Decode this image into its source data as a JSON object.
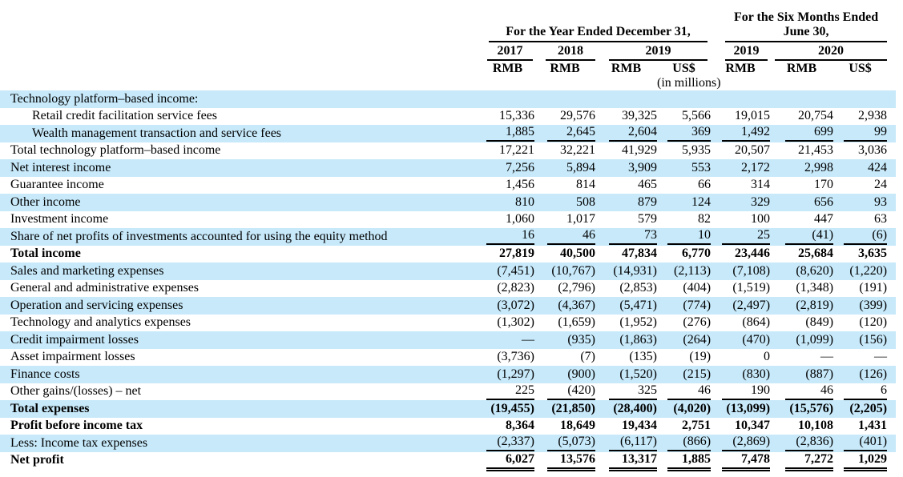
{
  "style": {
    "highlight_color": "#c7e9fa",
    "rule_color": "#000000"
  },
  "header": {
    "year_group": "For the Year Ended December 31,",
    "six_month_line1": "For the Six Months Ended",
    "six_month_line2": "June 30,",
    "years": [
      "2017",
      "2018",
      "2019",
      "2019",
      "2020"
    ],
    "units": [
      "RMB",
      "RMB",
      "RMB",
      "US$",
      "RMB",
      "RMB",
      "US$"
    ],
    "note": "(in millions)"
  },
  "table": {
    "rows": [
      {
        "label": "Technology platform–based income:",
        "indent": 0,
        "bold": false,
        "hl": true,
        "ul": "none",
        "values": [
          "",
          "",
          "",
          "",
          "",
          "",
          ""
        ]
      },
      {
        "label": "Retail credit facilitation service fees",
        "indent": 1,
        "bold": false,
        "hl": false,
        "ul": "none",
        "values": [
          "15,336",
          "29,576",
          "39,325",
          "5,566",
          "19,015",
          "20,754",
          "2,938"
        ]
      },
      {
        "label": "Wealth management transaction and service fees",
        "indent": 1,
        "bold": false,
        "hl": true,
        "ul": "single",
        "values": [
          "1,885",
          "2,645",
          "2,604",
          "369",
          "1,492",
          "699",
          "99"
        ]
      },
      {
        "label": "Total technology platform–based income",
        "indent": 0,
        "bold": false,
        "hl": false,
        "ul": "none",
        "values": [
          "17,221",
          "32,221",
          "41,929",
          "5,935",
          "20,507",
          "21,453",
          "3,036"
        ]
      },
      {
        "label": "Net interest income",
        "indent": 0,
        "bold": false,
        "hl": true,
        "ul": "none",
        "values": [
          "7,256",
          "5,894",
          "3,909",
          "553",
          "2,172",
          "2,998",
          "424"
        ]
      },
      {
        "label": "Guarantee income",
        "indent": 0,
        "bold": false,
        "hl": false,
        "ul": "none",
        "values": [
          "1,456",
          "814",
          "465",
          "66",
          "314",
          "170",
          "24"
        ]
      },
      {
        "label": "Other income",
        "indent": 0,
        "bold": false,
        "hl": true,
        "ul": "none",
        "values": [
          "810",
          "508",
          "879",
          "124",
          "329",
          "656",
          "93"
        ]
      },
      {
        "label": "Investment income",
        "indent": 0,
        "bold": false,
        "hl": false,
        "ul": "none",
        "values": [
          "1,060",
          "1,017",
          "579",
          "82",
          "100",
          "447",
          "63"
        ]
      },
      {
        "label": "Share of net profits of investments accounted for using the equity method",
        "indent": 0,
        "bold": false,
        "hl": true,
        "ul": "single",
        "values": [
          "16",
          "46",
          "73",
          "10",
          "25",
          "(41)",
          "(6)"
        ]
      },
      {
        "label": "Total income",
        "indent": 0,
        "bold": true,
        "hl": false,
        "ul": "none",
        "values": [
          "27,819",
          "40,500",
          "47,834",
          "6,770",
          "23,446",
          "25,684",
          "3,635"
        ]
      },
      {
        "label": "Sales and marketing expenses",
        "indent": 0,
        "bold": false,
        "hl": true,
        "ul": "none",
        "values": [
          "(7,451)",
          "(10,767)",
          "(14,931)",
          "(2,113)",
          "(7,108)",
          "(8,620)",
          "(1,220)"
        ]
      },
      {
        "label": "General and administrative expenses",
        "indent": 0,
        "bold": false,
        "hl": false,
        "ul": "none",
        "values": [
          "(2,823)",
          "(2,796)",
          "(2,853)",
          "(404)",
          "(1,519)",
          "(1,348)",
          "(191)"
        ]
      },
      {
        "label": "Operation and servicing expenses",
        "indent": 0,
        "bold": false,
        "hl": true,
        "ul": "none",
        "values": [
          "(3,072)",
          "(4,367)",
          "(5,471)",
          "(774)",
          "(2,497)",
          "(2,819)",
          "(399)"
        ]
      },
      {
        "label": "Technology and analytics expenses",
        "indent": 0,
        "bold": false,
        "hl": false,
        "ul": "none",
        "values": [
          "(1,302)",
          "(1,659)",
          "(1,952)",
          "(276)",
          "(864)",
          "(849)",
          "(120)"
        ]
      },
      {
        "label": "Credit impairment losses",
        "indent": 0,
        "bold": false,
        "hl": true,
        "ul": "none",
        "values": [
          "—",
          "(935)",
          "(1,863)",
          "(264)",
          "(470)",
          "(1,099)",
          "(156)"
        ]
      },
      {
        "label": "Asset impairment losses",
        "indent": 0,
        "bold": false,
        "hl": false,
        "ul": "none",
        "values": [
          "(3,736)",
          "(7)",
          "(135)",
          "(19)",
          "0",
          "—",
          "—"
        ]
      },
      {
        "label": "Finance costs",
        "indent": 0,
        "bold": false,
        "hl": true,
        "ul": "none",
        "values": [
          "(1,297)",
          "(900)",
          "(1,520)",
          "(215)",
          "(830)",
          "(887)",
          "(126)"
        ]
      },
      {
        "label": "Other gains/(losses) – net",
        "indent": 0,
        "bold": false,
        "hl": false,
        "ul": "single",
        "values": [
          "225",
          "(420)",
          "325",
          "46",
          "190",
          "46",
          "6"
        ]
      },
      {
        "label": "Total expenses",
        "indent": 0,
        "bold": true,
        "hl": true,
        "ul": "none",
        "values": [
          "(19,455)",
          "(21,850)",
          "(28,400)",
          "(4,020)",
          "(13,099)",
          "(15,576)",
          "(2,205)"
        ]
      },
      {
        "label": "Profit before income tax",
        "indent": 0,
        "bold": true,
        "hl": false,
        "ul": "none",
        "values": [
          "8,364",
          "18,649",
          "19,434",
          "2,751",
          "10,347",
          "10,108",
          "1,431"
        ]
      },
      {
        "label": "Less: Income tax expenses",
        "indent": 0,
        "bold": false,
        "hl": true,
        "ul": "single",
        "values": [
          "(2,337)",
          "(5,073)",
          "(6,117)",
          "(866)",
          "(2,869)",
          "(2,836)",
          "(401)"
        ]
      },
      {
        "label": "Net profit",
        "indent": 0,
        "bold": true,
        "hl": false,
        "ul": "double",
        "values": [
          "6,027",
          "13,576",
          "13,317",
          "1,885",
          "7,478",
          "7,272",
          "1,029"
        ]
      }
    ]
  }
}
